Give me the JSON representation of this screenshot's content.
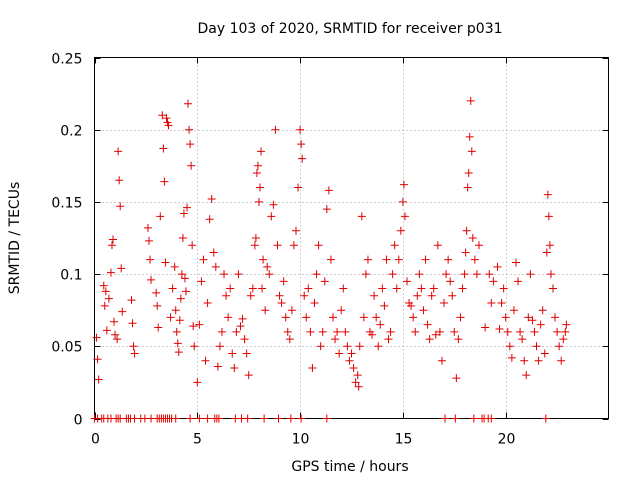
{
  "chart_data": {
    "type": "scatter",
    "title": "Day 103 of 2020, SRMTID for receiver p031",
    "xlabel": "GPS time / hours",
    "ylabel": "SRMTID / TECUs",
    "xlim": [
      0,
      25
    ],
    "ylim": [
      0,
      0.25
    ],
    "x_ticks": [
      0,
      5,
      10,
      15,
      20
    ],
    "x_tick_labels": [
      "0",
      "5",
      "10",
      "15",
      "20"
    ],
    "y_ticks": [
      0,
      0.05,
      0.1,
      0.15,
      0.2,
      0.25
    ],
    "y_tick_labels": [
      "0",
      "0.05",
      "0.1",
      "0.15",
      "0.2",
      "0.25"
    ],
    "grid": true,
    "marker": "plus",
    "color": "#e00000",
    "series": [
      {
        "name": "SRMTID",
        "points": [
          [
            0.1,
            0.056
          ],
          [
            0.15,
            0.041
          ],
          [
            0.2,
            0.027
          ],
          [
            0.45,
            0.092
          ],
          [
            0.5,
            0.078
          ],
          [
            0.55,
            0.088
          ],
          [
            0.6,
            0.061
          ],
          [
            0.7,
            0.083
          ],
          [
            0.8,
            0.101
          ],
          [
            0.85,
            0.12
          ],
          [
            0.9,
            0.124
          ],
          [
            0.95,
            0.067
          ],
          [
            1.0,
            0.058
          ],
          [
            1.1,
            0.055
          ],
          [
            1.15,
            0.185
          ],
          [
            1.2,
            0.165
          ],
          [
            1.25,
            0.147
          ],
          [
            1.3,
            0.104
          ],
          [
            1.35,
            0.074
          ],
          [
            1.8,
            0.082
          ],
          [
            1.85,
            0.066
          ],
          [
            1.9,
            0.05
          ],
          [
            1.95,
            0.045
          ],
          [
            2.6,
            0.132
          ],
          [
            2.65,
            0.123
          ],
          [
            2.7,
            0.11
          ],
          [
            2.75,
            0.096
          ],
          [
            3.0,
            0.087
          ],
          [
            3.05,
            0.078
          ],
          [
            3.1,
            0.063
          ],
          [
            3.2,
            0.14
          ],
          [
            3.3,
            0.21
          ],
          [
            3.35,
            0.187
          ],
          [
            3.4,
            0.164
          ],
          [
            3.45,
            0.108
          ],
          [
            3.5,
            0.208
          ],
          [
            3.55,
            0.205
          ],
          [
            3.6,
            0.203
          ],
          [
            3.7,
            0.07
          ],
          [
            3.8,
            0.09
          ],
          [
            3.9,
            0.105
          ],
          [
            3.95,
            0.075
          ],
          [
            4.0,
            0.06
          ],
          [
            4.05,
            0.052
          ],
          [
            4.1,
            0.046
          ],
          [
            4.15,
            0.068
          ],
          [
            4.2,
            0.083
          ],
          [
            4.25,
            0.1
          ],
          [
            4.3,
            0.125
          ],
          [
            4.35,
            0.142
          ],
          [
            4.4,
            0.097
          ],
          [
            4.45,
            0.088
          ],
          [
            4.5,
            0.146
          ],
          [
            4.55,
            0.218
          ],
          [
            4.6,
            0.2
          ],
          [
            4.65,
            0.19
          ],
          [
            4.7,
            0.175
          ],
          [
            4.75,
            0.12
          ],
          [
            4.8,
            0.064
          ],
          [
            4.85,
            0.05
          ],
          [
            5.0,
            0.025
          ],
          [
            5.1,
            0.065
          ],
          [
            5.2,
            0.095
          ],
          [
            5.3,
            0.11
          ],
          [
            5.4,
            0.04
          ],
          [
            5.5,
            0.08
          ],
          [
            5.6,
            0.138
          ],
          [
            5.7,
            0.152
          ],
          [
            5.8,
            0.115
          ],
          [
            5.9,
            0.105
          ],
          [
            6.0,
            0.036
          ],
          [
            6.1,
            0.05
          ],
          [
            6.2,
            0.06
          ],
          [
            6.3,
            0.1
          ],
          [
            6.4,
            0.085
          ],
          [
            6.5,
            0.07
          ],
          [
            6.6,
            0.09
          ],
          [
            6.7,
            0.045
          ],
          [
            6.8,
            0.035
          ],
          [
            6.9,
            0.06
          ],
          [
            7.0,
            0.1
          ],
          [
            7.1,
            0.064
          ],
          [
            7.2,
            0.069
          ],
          [
            7.3,
            0.055
          ],
          [
            7.4,
            0.045
          ],
          [
            7.5,
            0.03
          ],
          [
            7.6,
            0.085
          ],
          [
            7.7,
            0.09
          ],
          [
            7.8,
            0.12
          ],
          [
            7.85,
            0.125
          ],
          [
            7.9,
            0.17
          ],
          [
            7.95,
            0.175
          ],
          [
            8.0,
            0.15
          ],
          [
            8.05,
            0.16
          ],
          [
            8.1,
            0.185
          ],
          [
            8.15,
            0.09
          ],
          [
            8.2,
            0.11
          ],
          [
            8.3,
            0.075
          ],
          [
            8.4,
            0.105
          ],
          [
            8.5,
            0.1
          ],
          [
            8.6,
            0.14
          ],
          [
            8.7,
            0.148
          ],
          [
            8.8,
            0.2
          ],
          [
            8.9,
            0.12
          ],
          [
            9.0,
            0.085
          ],
          [
            9.1,
            0.08
          ],
          [
            9.2,
            0.095
          ],
          [
            9.3,
            0.07
          ],
          [
            9.4,
            0.06
          ],
          [
            9.5,
            0.055
          ],
          [
            9.6,
            0.075
          ],
          [
            9.7,
            0.12
          ],
          [
            9.8,
            0.13
          ],
          [
            9.9,
            0.16
          ],
          [
            10.0,
            0.2
          ],
          [
            10.05,
            0.19
          ],
          [
            10.1,
            0.18
          ],
          [
            10.2,
            0.085
          ],
          [
            10.3,
            0.07
          ],
          [
            10.4,
            0.09
          ],
          [
            10.5,
            0.06
          ],
          [
            10.6,
            0.035
          ],
          [
            10.7,
            0.08
          ],
          [
            10.8,
            0.1
          ],
          [
            10.9,
            0.12
          ],
          [
            11.0,
            0.05
          ],
          [
            11.1,
            0.06
          ],
          [
            11.2,
            0.095
          ],
          [
            11.3,
            0.145
          ],
          [
            11.4,
            0.158
          ],
          [
            11.5,
            0.11
          ],
          [
            11.6,
            0.07
          ],
          [
            11.7,
            0.055
          ],
          [
            11.8,
            0.06
          ],
          [
            11.9,
            0.045
          ],
          [
            12.0,
            0.075
          ],
          [
            12.1,
            0.09
          ],
          [
            12.2,
            0.06
          ],
          [
            12.3,
            0.05
          ],
          [
            12.4,
            0.04
          ],
          [
            12.5,
            0.045
          ],
          [
            12.6,
            0.035
          ],
          [
            12.7,
            0.025
          ],
          [
            12.8,
            0.03
          ],
          [
            12.85,
            0.022
          ],
          [
            12.9,
            0.05
          ],
          [
            13.0,
            0.14
          ],
          [
            13.1,
            0.07
          ],
          [
            13.2,
            0.1
          ],
          [
            13.3,
            0.11
          ],
          [
            13.4,
            0.06
          ],
          [
            13.5,
            0.058
          ],
          [
            13.6,
            0.085
          ],
          [
            13.7,
            0.07
          ],
          [
            13.8,
            0.05
          ],
          [
            13.9,
            0.065
          ],
          [
            14.0,
            0.09
          ],
          [
            14.1,
            0.078
          ],
          [
            14.2,
            0.11
          ],
          [
            14.3,
            0.055
          ],
          [
            14.4,
            0.06
          ],
          [
            14.5,
            0.1
          ],
          [
            14.6,
            0.12
          ],
          [
            14.7,
            0.09
          ],
          [
            14.8,
            0.11
          ],
          [
            14.9,
            0.13
          ],
          [
            15.0,
            0.15
          ],
          [
            15.05,
            0.162
          ],
          [
            15.1,
            0.14
          ],
          [
            15.2,
            0.095
          ],
          [
            15.3,
            0.08
          ],
          [
            15.4,
            0.078
          ],
          [
            15.5,
            0.07
          ],
          [
            15.6,
            0.06
          ],
          [
            15.7,
            0.085
          ],
          [
            15.8,
            0.1
          ],
          [
            15.9,
            0.09
          ],
          [
            16.0,
            0.075
          ],
          [
            16.1,
            0.11
          ],
          [
            16.2,
            0.065
          ],
          [
            16.3,
            0.055
          ],
          [
            16.4,
            0.085
          ],
          [
            16.5,
            0.09
          ],
          [
            16.6,
            0.058
          ],
          [
            16.7,
            0.12
          ],
          [
            16.8,
            0.06
          ],
          [
            16.9,
            0.04
          ],
          [
            17.0,
            0.08
          ],
          [
            17.1,
            0.1
          ],
          [
            17.2,
            0.11
          ],
          [
            17.3,
            0.095
          ],
          [
            17.4,
            0.085
          ],
          [
            17.5,
            0.06
          ],
          [
            17.6,
            0.028
          ],
          [
            17.7,
            0.055
          ],
          [
            17.8,
            0.07
          ],
          [
            17.9,
            0.09
          ],
          [
            18.0,
            0.1
          ],
          [
            18.05,
            0.115
          ],
          [
            18.1,
            0.13
          ],
          [
            18.15,
            0.16
          ],
          [
            18.2,
            0.17
          ],
          [
            18.25,
            0.195
          ],
          [
            18.3,
            0.22
          ],
          [
            18.35,
            0.185
          ],
          [
            18.4,
            0.125
          ],
          [
            18.5,
            0.11
          ],
          [
            18.6,
            0.1
          ],
          [
            18.7,
            0.12
          ],
          [
            19.0,
            0.063
          ],
          [
            19.2,
            0.1
          ],
          [
            19.3,
            0.08
          ],
          [
            19.4,
            0.095
          ],
          [
            19.6,
            0.105
          ],
          [
            19.7,
            0.062
          ],
          [
            19.8,
            0.08
          ],
          [
            19.9,
            0.09
          ],
          [
            20.0,
            0.07
          ],
          [
            20.1,
            0.06
          ],
          [
            20.2,
            0.05
          ],
          [
            20.3,
            0.042
          ],
          [
            20.4,
            0.075
          ],
          [
            20.5,
            0.108
          ],
          [
            20.6,
            0.095
          ],
          [
            20.7,
            0.06
          ],
          [
            20.8,
            0.055
          ],
          [
            20.9,
            0.04
          ],
          [
            21.0,
            0.03
          ],
          [
            21.1,
            0.07
          ],
          [
            21.2,
            0.1
          ],
          [
            21.3,
            0.068
          ],
          [
            21.4,
            0.06
          ],
          [
            21.5,
            0.05
          ],
          [
            21.6,
            0.04
          ],
          [
            21.7,
            0.065
          ],
          [
            21.8,
            0.075
          ],
          [
            21.9,
            0.045
          ],
          [
            22.0,
            0.115
          ],
          [
            22.05,
            0.155
          ],
          [
            22.1,
            0.14
          ],
          [
            22.15,
            0.12
          ],
          [
            22.2,
            0.1
          ],
          [
            22.3,
            0.09
          ],
          [
            22.4,
            0.07
          ],
          [
            22.5,
            0.06
          ],
          [
            22.6,
            0.05
          ],
          [
            22.7,
            0.04
          ],
          [
            22.8,
            0.055
          ],
          [
            22.9,
            0.06
          ],
          [
            22.95,
            0.065
          ]
        ]
      }
    ],
    "zero_points": [
      0.0,
      0.15,
      0.35,
      0.45,
      0.65,
      0.8,
      1.05,
      1.15,
      1.25,
      1.55,
      1.65,
      1.75,
      1.95,
      2.25,
      2.45,
      2.75,
      3.05,
      3.15,
      3.25,
      3.35,
      3.45,
      3.55,
      3.65,
      3.75,
      3.95,
      4.65,
      5.1,
      5.5,
      5.85,
      5.95,
      6.05,
      6.85,
      7.15,
      7.45,
      8.25,
      8.95,
      9.55,
      10.05,
      11.3,
      17.05,
      17.55,
      18.45,
      18.85,
      18.95,
      19.15,
      19.3,
      21.95
    ]
  }
}
